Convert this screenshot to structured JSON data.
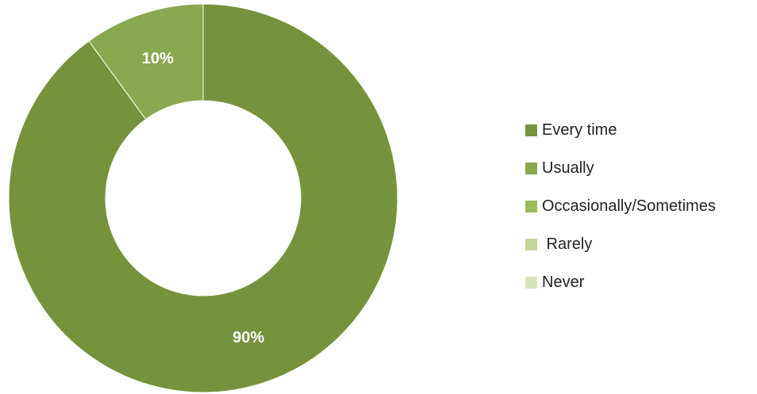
{
  "chart_data": {
    "type": "pie",
    "donut": true,
    "title": "",
    "legend_position": "right",
    "categories": [
      "Every time",
      "Usually",
      "Occasionally/Sometimes",
      " Rarely",
      "Never"
    ],
    "values": [
      90,
      10,
      0,
      0,
      0
    ],
    "value_labels": [
      "90%",
      "10%",
      "",
      "",
      ""
    ],
    "colors": [
      "#76923c",
      "#8aa84f",
      "#9bbb59",
      "#c3d69b",
      "#d7e4bd"
    ]
  }
}
